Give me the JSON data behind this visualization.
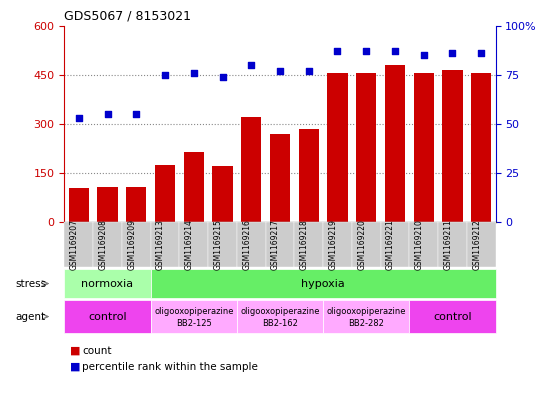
{
  "title": "GDS5067 / 8153021",
  "samples": [
    "GSM1169207",
    "GSM1169208",
    "GSM1169209",
    "GSM1169213",
    "GSM1169214",
    "GSM1169215",
    "GSM1169216",
    "GSM1169217",
    "GSM1169218",
    "GSM1169219",
    "GSM1169220",
    "GSM1169221",
    "GSM1169210",
    "GSM1169211",
    "GSM1169212"
  ],
  "counts": [
    105,
    108,
    108,
    175,
    215,
    170,
    320,
    270,
    285,
    455,
    455,
    480,
    455,
    465,
    455
  ],
  "percentiles": [
    53,
    55,
    55,
    75,
    76,
    74,
    80,
    77,
    77,
    87,
    87,
    87,
    85,
    86,
    86
  ],
  "bar_color": "#cc0000",
  "dot_color": "#0000cc",
  "left_ylim": [
    0,
    600
  ],
  "left_yticks": [
    0,
    150,
    300,
    450,
    600
  ],
  "right_ylim": [
    0,
    100
  ],
  "right_yticks": [
    0,
    25,
    50,
    75,
    100
  ],
  "right_yticklabels": [
    "0",
    "25",
    "50",
    "75",
    "100%"
  ],
  "stress_groups": [
    {
      "label": "normoxia",
      "start": 0,
      "end": 3,
      "color": "#aaffaa"
    },
    {
      "label": "hypoxia",
      "start": 3,
      "end": 15,
      "color": "#66ee66"
    }
  ],
  "agent_groups": [
    {
      "label": "control",
      "start": 0,
      "end": 3,
      "color": "#ee44ee",
      "text_main": "control",
      "text_sub": ""
    },
    {
      "label": "oligooxopiperazine",
      "start": 3,
      "end": 6,
      "color": "#ffaaff",
      "text_main": "oligooxopiperazine",
      "text_sub": "BB2-125"
    },
    {
      "label": "oligooxopiperazine",
      "start": 6,
      "end": 9,
      "color": "#ffaaff",
      "text_main": "oligooxopiperazine",
      "text_sub": "BB2-162"
    },
    {
      "label": "oligooxopiperazine",
      "start": 9,
      "end": 12,
      "color": "#ffaaff",
      "text_main": "oligooxopiperazine",
      "text_sub": "BB2-282"
    },
    {
      "label": "control",
      "start": 12,
      "end": 15,
      "color": "#ee44ee",
      "text_main": "control",
      "text_sub": ""
    }
  ],
  "background_color": "#ffffff",
  "grid_color": "#888888",
  "tick_label_color_left": "#cc0000",
  "tick_label_color_right": "#0000cc",
  "xtick_bg_color": "#cccccc"
}
